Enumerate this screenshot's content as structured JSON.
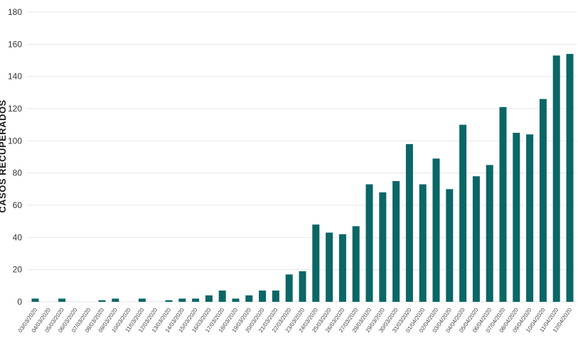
{
  "chart_data": {
    "type": "bar",
    "title": "",
    "xlabel": "",
    "ylabel": "CASOS RECUPERADOS",
    "ylim": [
      0,
      180
    ],
    "yticks": [
      0,
      20,
      40,
      60,
      80,
      100,
      120,
      140,
      160,
      180
    ],
    "grid": true,
    "legend": "none",
    "bar_color": "#0b6666",
    "categories": [
      "03/03/2020",
      "04/03/2020",
      "05/03/2020",
      "06/03/2020",
      "07/03/2020",
      "08/03/2020",
      "09/03/2020",
      "10/03/2020",
      "11/03/2020",
      "12/03/2020",
      "13/03/2020",
      "14/03/2020",
      "15/03/2020",
      "16/03/2020",
      "17/03/2020",
      "18/03/2020",
      "19/03/2020",
      "20/03/2020",
      "21/03/2020",
      "22/03/2020",
      "23/03/2020",
      "24/03/2020",
      "25/03/2020",
      "26/03/2020",
      "27/03/2020",
      "28/03/2020",
      "29/03/2020",
      "30/03/2020",
      "31/03/2020",
      "01/04/2020",
      "02/04/2020",
      "03/04/2020",
      "04/04/2020",
      "05/04/2020",
      "06/04/2020",
      "07/04/2020",
      "08/04/2020",
      "09/04/2020",
      "10/04/2020",
      "11/04/2020",
      "12/04/2020"
    ],
    "values": [
      2,
      0,
      2,
      0,
      0,
      1,
      2,
      0,
      2,
      0,
      1,
      2,
      2,
      4,
      7,
      2,
      4,
      7,
      7,
      17,
      19,
      48,
      43,
      42,
      47,
      73,
      68,
      75,
      98,
      73,
      89,
      70,
      110,
      78,
      85,
      121,
      105,
      104,
      126,
      153,
      154
    ]
  }
}
